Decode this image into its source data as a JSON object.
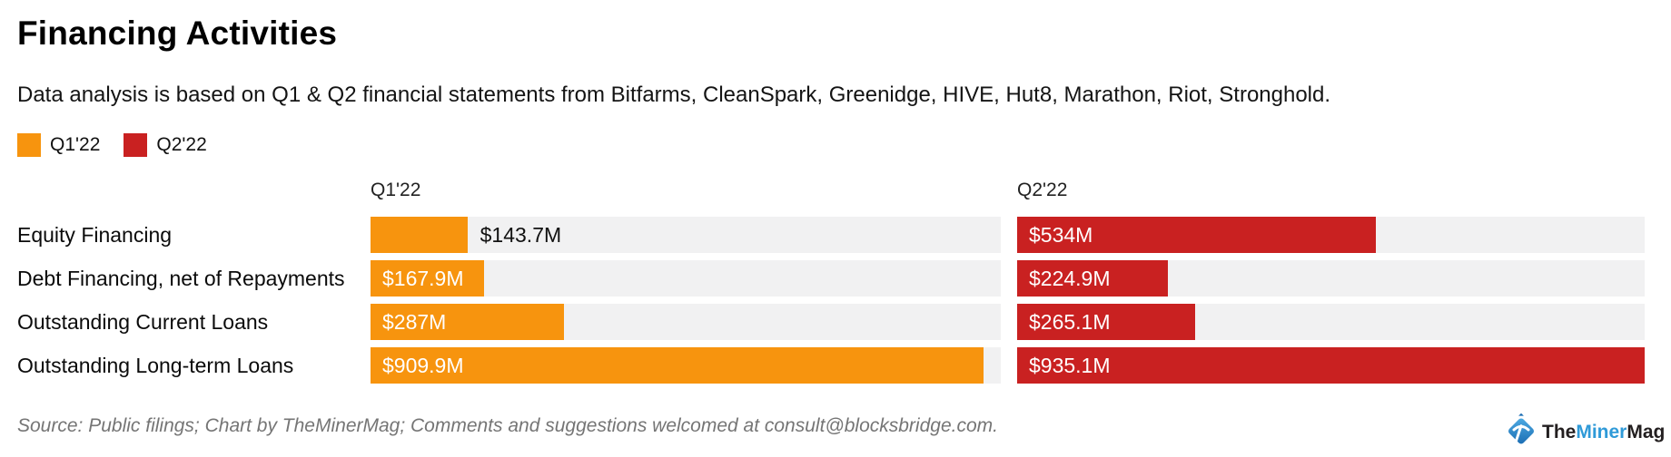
{
  "header": {
    "title": "Financing Activities",
    "subtitle": "Data analysis is based on Q1 & Q2 financial statements from Bitfarms, CleanSpark, Greenidge, HIVE, Hut8, Marathon, Riot, Stronghold."
  },
  "legend": [
    {
      "label": "Q1'22",
      "color": "#F7940E"
    },
    {
      "label": "Q2'22",
      "color": "#C92121"
    }
  ],
  "chart_data": {
    "type": "bar",
    "orientation": "horizontal",
    "title": "Financing Activities",
    "value_unit": "USD millions",
    "xlim": [
      0,
      935.1
    ],
    "grid": false,
    "legend_position": "top-left",
    "panel_headers": [
      "Q1'22",
      "Q2'22"
    ],
    "track_color": "#f1f1f2",
    "categories": [
      "Equity Financing",
      "Debt Financing, net of Repayments",
      "Outstanding Current Loans",
      "Outstanding Long-term Loans"
    ],
    "series": [
      {
        "name": "Q1'22",
        "color": "#F7940E",
        "values": [
          143.7,
          167.9,
          287,
          909.9
        ],
        "labels": [
          "$143.7M",
          "$167.9M",
          "$287M",
          "$909.9M"
        ],
        "label_placement": [
          "outside",
          "inside",
          "inside",
          "inside"
        ]
      },
      {
        "name": "Q2'22",
        "color": "#C92121",
        "values": [
          534,
          224.9,
          265.1,
          935.1
        ],
        "labels": [
          "$534M",
          "$224.9M",
          "$265.1M",
          "$935.1M"
        ],
        "label_placement": [
          "inside",
          "inside",
          "inside",
          "inside"
        ]
      }
    ]
  },
  "footer": {
    "source_note": "Source: Public filings; Chart by TheMinerMag; Comments and suggestions welcomed at consult@blocksbridge.com."
  },
  "logo": {
    "parts": [
      {
        "text": "The",
        "color": "#231f20"
      },
      {
        "text": "Miner",
        "color": "#2f9ad8"
      },
      {
        "text": "Mag",
        "color": "#231f20"
      }
    ]
  }
}
